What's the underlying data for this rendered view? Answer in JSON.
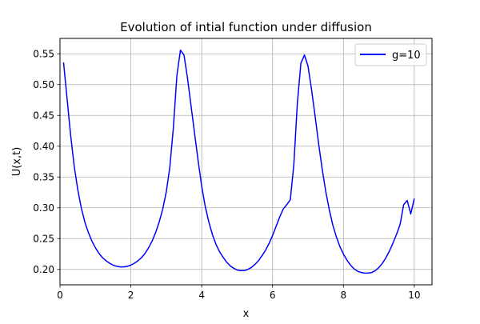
{
  "chart_data": {
    "type": "line",
    "title": "Evolution of intial function under diffusion",
    "xlabel": "x",
    "ylabel": "U(x,t)",
    "xlim": [
      0,
      10.5
    ],
    "ylim": [
      0.175,
      0.575
    ],
    "xticks": [
      0,
      2,
      4,
      6,
      8,
      10
    ],
    "xtick_labels": [
      "0",
      "2",
      "4",
      "6",
      "8",
      "10"
    ],
    "yticks": [
      0.2,
      0.25,
      0.3,
      0.35,
      0.4,
      0.45,
      0.5,
      0.55
    ],
    "ytick_labels": [
      "0.20",
      "0.25",
      "0.30",
      "0.35",
      "0.40",
      "0.45",
      "0.50",
      "0.55"
    ],
    "grid": true,
    "legend_position": "top-right",
    "series": [
      {
        "name": "g=10",
        "color": "#0000ff",
        "x": [
          0.1,
          0.2,
          0.3,
          0.4,
          0.5,
          0.6,
          0.7,
          0.8,
          0.9,
          1.0,
          1.1,
          1.2,
          1.3,
          1.4,
          1.5,
          1.6,
          1.7,
          1.8,
          1.9,
          2.0,
          2.1,
          2.2,
          2.3,
          2.4,
          2.5,
          2.6,
          2.7,
          2.8,
          2.9,
          3.0,
          3.1,
          3.2,
          3.3,
          3.4,
          3.5,
          3.6,
          3.7,
          3.8,
          3.9,
          4.0,
          4.1,
          4.2,
          4.3,
          4.4,
          4.5,
          4.6,
          4.7,
          4.8,
          4.9,
          5.0,
          5.1,
          5.2,
          5.3,
          5.4,
          5.5,
          5.6,
          5.7,
          5.8,
          5.9,
          6.0,
          6.1,
          6.2,
          6.3,
          6.4,
          6.5,
          6.6,
          6.7,
          6.8,
          6.9,
          7.0,
          7.1,
          7.2,
          7.3,
          7.4,
          7.5,
          7.6,
          7.7,
          7.8,
          7.9,
          8.0,
          8.1,
          8.2,
          8.3,
          8.4,
          8.5,
          8.6,
          8.7,
          8.8,
          8.9,
          9.0,
          9.1,
          9.2,
          9.3,
          9.4,
          9.5,
          9.6,
          9.7,
          9.8,
          9.9,
          10.0
        ],
        "y": [
          0.536,
          0.477,
          0.418,
          0.368,
          0.33,
          0.3,
          0.277,
          0.26,
          0.246,
          0.235,
          0.226,
          0.219,
          0.214,
          0.21,
          0.207,
          0.205,
          0.204,
          0.204,
          0.205,
          0.207,
          0.21,
          0.214,
          0.219,
          0.226,
          0.235,
          0.246,
          0.26,
          0.277,
          0.298,
          0.326,
          0.366,
          0.43,
          0.515,
          0.556,
          0.548,
          0.51,
          0.465,
          0.42,
          0.376,
          0.335,
          0.302,
          0.277,
          0.257,
          0.241,
          0.229,
          0.22,
          0.212,
          0.206,
          0.202,
          0.199,
          0.198,
          0.198,
          0.2,
          0.203,
          0.208,
          0.214,
          0.222,
          0.231,
          0.242,
          0.255,
          0.27,
          0.285,
          0.298,
          0.305,
          0.313,
          0.37,
          0.47,
          0.535,
          0.548,
          0.53,
          0.492,
          0.449,
          0.404,
          0.363,
          0.327,
          0.297,
          0.272,
          0.253,
          0.237,
          0.225,
          0.215,
          0.207,
          0.201,
          0.197,
          0.195,
          0.194,
          0.194,
          0.195,
          0.198,
          0.203,
          0.21,
          0.219,
          0.23,
          0.243,
          0.257,
          0.273,
          0.305,
          0.312,
          0.29,
          0.315
        ]
      }
    ]
  }
}
